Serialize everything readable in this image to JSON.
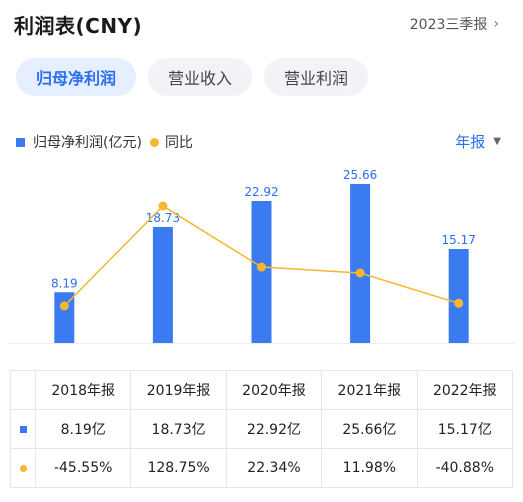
{
  "header": {
    "title": "利润表(CNY)",
    "period": "2023三季报"
  },
  "tabs": [
    {
      "label": "归母净利润",
      "active": true
    },
    {
      "label": "营业收入",
      "active": false
    },
    {
      "label": "营业利润",
      "active": false
    }
  ],
  "legend": {
    "bar_label": "归母净利润(亿元)",
    "line_label": "同比"
  },
  "report_select": "年报",
  "colors": {
    "bar": "#3a7bef",
    "line": "#f5b731",
    "accent": "#2c6ef2",
    "up": "#e0413c",
    "down": "#2aa65a"
  },
  "chart_data": {
    "type": "bar",
    "categories": [
      "2018年报",
      "2019年报",
      "2020年报",
      "2021年报",
      "2022年报"
    ],
    "series": [
      {
        "name": "归母净利润(亿元)",
        "type": "bar",
        "values": [
          8.19,
          18.73,
          22.92,
          25.66,
          15.17
        ],
        "value_labels": [
          "8.19",
          "18.73",
          "22.92",
          "25.66",
          "15.17"
        ]
      },
      {
        "name": "同比",
        "type": "line",
        "values": [
          -45.55,
          128.75,
          22.34,
          11.98,
          -40.88
        ]
      }
    ],
    "legend": "top-left",
    "grid": false
  },
  "table": {
    "headers": [
      "2018年报",
      "2019年报",
      "2020年报",
      "2021年报",
      "2022年报"
    ],
    "rows": [
      {
        "marker": "bar",
        "cells": [
          "8.19亿",
          "18.73亿",
          "22.92亿",
          "25.66亿",
          "15.17亿"
        ]
      },
      {
        "marker": "line",
        "cells": [
          "-45.55%",
          "128.75%",
          "22.34%",
          "11.98%",
          "-40.88%"
        ]
      }
    ]
  }
}
